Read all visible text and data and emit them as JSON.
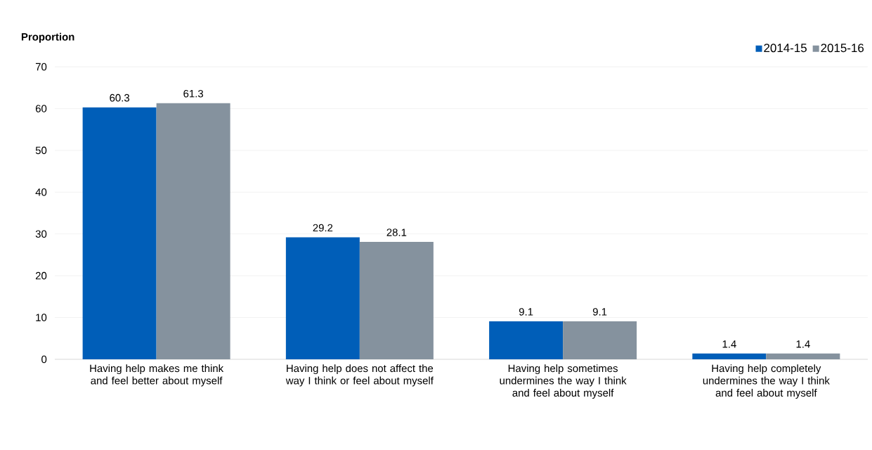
{
  "chart_data": {
    "type": "bar",
    "ylabel": "Proportion",
    "categories": [
      "Having help makes me think and feel better about myself",
      "Having help does not affect the way I think or feel about myself",
      "Having help sometimes undermines the way I think and feel about myself",
      "Having help completely undermines the way I think and feel about myself"
    ],
    "series": [
      {
        "name": "2014-15",
        "color": "#005eb8",
        "values": [
          60.3,
          29.2,
          9.1,
          1.4
        ]
      },
      {
        "name": "2015-16",
        "color": "#85929e",
        "values": [
          61.3,
          28.1,
          9.1,
          1.4
        ]
      }
    ],
    "ylim": [
      0,
      70
    ],
    "yticks": [
      0,
      10,
      20,
      30,
      40,
      50,
      60,
      70
    ],
    "grid": "y",
    "legend": "top right",
    "data_labels": true
  }
}
